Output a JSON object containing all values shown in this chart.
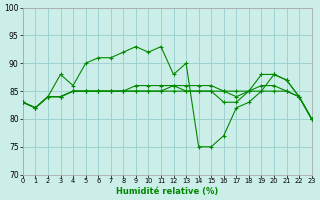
{
  "xlabel": "Humidité relative (%)",
  "bg_color": "#cceee8",
  "grid_color": "#99cccc",
  "line_color": "#008800",
  "xlim_min": 0,
  "xlim_max": 23,
  "ylim_min": 70,
  "ylim_max": 100,
  "yticks": [
    70,
    75,
    80,
    85,
    90,
    95,
    100
  ],
  "xticks": [
    0,
    1,
    2,
    3,
    4,
    5,
    6,
    7,
    8,
    9,
    10,
    11,
    12,
    13,
    14,
    15,
    16,
    17,
    18,
    19,
    20,
    21,
    22,
    23
  ],
  "series": [
    [
      83,
      82,
      84,
      84,
      85,
      85,
      85,
      85,
      85,
      85,
      85,
      85,
      85,
      85,
      85,
      85,
      85,
      85,
      85,
      85,
      85,
      85,
      84,
      80
    ],
    [
      83,
      82,
      84,
      84,
      85,
      85,
      85,
      85,
      85,
      86,
      86,
      86,
      86,
      86,
      86,
      86,
      85,
      84,
      85,
      86,
      86,
      85,
      84,
      80
    ],
    [
      83,
      82,
      84,
      88,
      86,
      90,
      91,
      91,
      92,
      93,
      92,
      93,
      88,
      90,
      75,
      75,
      77,
      82,
      83,
      85,
      88,
      87,
      84,
      80
    ],
    [
      83,
      82,
      84,
      84,
      85,
      85,
      85,
      85,
      85,
      85,
      85,
      85,
      86,
      85,
      85,
      85,
      83,
      83,
      85,
      88,
      88,
      87,
      84,
      80
    ]
  ]
}
